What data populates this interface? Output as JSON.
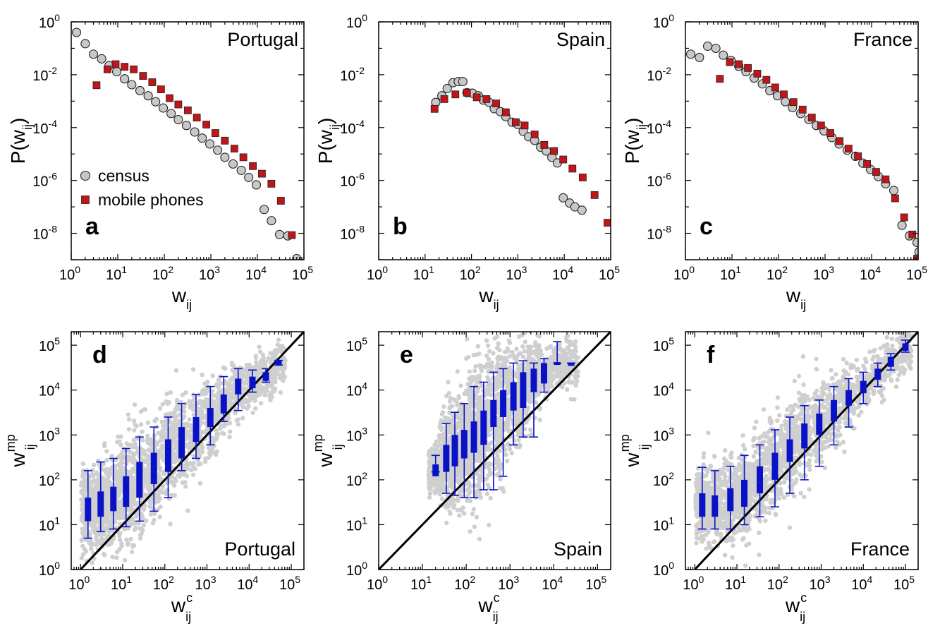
{
  "colors": {
    "census_fill": "#c8c8c8",
    "phones_fill": "#c0161b",
    "box_blue": "#0a12c8",
    "scatter_gray": "#cfcfcf"
  },
  "chart_data": [
    {
      "type": "scatter",
      "panel_letter": "a",
      "country": "Portugal",
      "xlabel": "w",
      "xlabel_sub": "ij",
      "ylabel": "P(w",
      "ylabel_sub": "ij",
      "ylabel_close": ")",
      "xscale": "log",
      "yscale": "log",
      "xlim": [
        1,
        100000
      ],
      "ylim": [
        1e-09,
        1
      ],
      "xticks": [
        {
          "b": "10",
          "e": "0"
        },
        {
          "b": "10",
          "e": "1"
        },
        {
          "b": "10",
          "e": "2"
        },
        {
          "b": "10",
          "e": "3"
        },
        {
          "b": "10",
          "e": "4"
        },
        {
          "b": "10",
          "e": "5"
        }
      ],
      "yticks": [
        {
          "b": "10",
          "e": "0"
        },
        {
          "b": "10",
          "e": "-2"
        },
        {
          "b": "10",
          "e": "-4"
        },
        {
          "b": "10",
          "e": "-6"
        },
        {
          "b": "10",
          "e": "-8"
        }
      ],
      "legend": [
        "census",
        "mobile phones"
      ],
      "series": [
        {
          "name": "census",
          "marker": "circle",
          "x": [
            1.3,
            2,
            3,
            4.5,
            6.5,
            9.5,
            14,
            20,
            30,
            45,
            65,
            95,
            140,
            200,
            300,
            450,
            650,
            950,
            1400,
            2000,
            3000,
            4500,
            6500,
            9500,
            14000,
            20000,
            30000,
            45000,
            70000
          ],
          "y": [
            0.4,
            0.15,
            0.06,
            0.04,
            0.022,
            0.013,
            0.007,
            0.0042,
            0.0025,
            0.0016,
            0.00095,
            0.00055,
            0.00034,
            0.0002,
            0.00012,
            6.8e-05,
            4e-05,
            2.4e-05,
            1.4e-05,
            7.5e-06,
            4.2e-06,
            2.4e-06,
            1.3e-06,
            6.8e-07,
            8e-08,
            3e-08,
            9e-09,
            8e-09,
            1.1e-09
          ]
        },
        {
          "name": "mobile phones",
          "marker": "square",
          "x": [
            3.5,
            6,
            9,
            14,
            22,
            35,
            55,
            85,
            130,
            200,
            320,
            500,
            800,
            1250,
            2000,
            3200,
            5000,
            8000,
            12500,
            20000,
            32000,
            55000
          ],
          "y": [
            0.004,
            0.016,
            0.025,
            0.02,
            0.016,
            0.009,
            0.0052,
            0.0028,
            0.0013,
            0.00075,
            0.00045,
            0.00024,
            0.00013,
            6.2e-05,
            3.2e-05,
            1.6e-05,
            7.5e-06,
            3.5e-06,
            1.8e-06,
            7.5e-07,
            1.7e-07,
            8.5e-09
          ]
        }
      ]
    },
    {
      "type": "scatter",
      "panel_letter": "b",
      "country": "Spain",
      "xlabel": "w",
      "xlabel_sub": "ij",
      "ylabel": "P(w",
      "ylabel_sub": "ij",
      "ylabel_close": ")",
      "xscale": "log",
      "yscale": "log",
      "xlim": [
        1,
        100000
      ],
      "ylim": [
        1e-09,
        1
      ],
      "xticks": [
        {
          "b": "10",
          "e": "0"
        },
        {
          "b": "10",
          "e": "1"
        },
        {
          "b": "10",
          "e": "2"
        },
        {
          "b": "10",
          "e": "3"
        },
        {
          "b": "10",
          "e": "4"
        },
        {
          "b": "10",
          "e": "5"
        }
      ],
      "yticks": [
        {
          "b": "10",
          "e": "0"
        },
        {
          "b": "10",
          "e": "-2"
        },
        {
          "b": "10",
          "e": "-4"
        },
        {
          "b": "10",
          "e": "-6"
        },
        {
          "b": "10",
          "e": "-8"
        }
      ],
      "series": [
        {
          "name": "census",
          "marker": "circle",
          "x": [
            17,
            23,
            30,
            40,
            52,
            65,
            80,
            105,
            140,
            180,
            240,
            310,
            420,
            550,
            750,
            1000,
            1300,
            1700,
            2300,
            3100,
            4100,
            5400,
            7100,
            9500,
            13000,
            17000,
            24000
          ],
          "y": [
            0.0009,
            0.0016,
            0.003,
            0.005,
            0.0055,
            0.0055,
            0.0021,
            0.002,
            0.0016,
            0.0011,
            0.0009,
            0.00052,
            0.0004,
            0.00026,
            0.00016,
            0.00013,
            7.2e-05,
            4.5e-05,
            3.3e-05,
            1.8e-05,
            1.3e-05,
            7.5e-06,
            4.6e-06,
            2.2e-07,
            1.4e-07,
            1e-07,
            7.5e-08
          ]
        },
        {
          "name": "mobile phones",
          "marker": "square",
          "x": [
            16,
            26,
            45,
            80,
            130,
            210,
            340,
            550,
            900,
            1400,
            2300,
            3700,
            6000,
            9500,
            15000,
            25000,
            45000,
            85000
          ],
          "y": [
            0.00051,
            0.0012,
            0.0018,
            0.0021,
            0.0014,
            0.0012,
            0.00082,
            0.00038,
            0.00016,
            0.00012,
            5.5e-05,
            2.2e-05,
            1.3e-05,
            6.2e-06,
            2.8e-06,
            1.3e-06,
            2.8e-07,
            2.5e-08
          ]
        }
      ]
    },
    {
      "type": "scatter",
      "panel_letter": "c",
      "country": "France",
      "xlabel": "w",
      "xlabel_sub": "ij",
      "ylabel": "P(w",
      "ylabel_sub": "ij",
      "ylabel_close": ")",
      "xscale": "log",
      "yscale": "log",
      "xlim": [
        1,
        100000
      ],
      "ylim": [
        1e-09,
        1
      ],
      "xticks": [
        {
          "b": "10",
          "e": "0"
        },
        {
          "b": "10",
          "e": "1"
        },
        {
          "b": "10",
          "e": "2"
        },
        {
          "b": "10",
          "e": "3"
        },
        {
          "b": "10",
          "e": "4"
        },
        {
          "b": "10",
          "e": "5"
        }
      ],
      "yticks": [
        {
          "b": "10",
          "e": "0"
        },
        {
          "b": "10",
          "e": "-2"
        },
        {
          "b": "10",
          "e": "-4"
        },
        {
          "b": "10",
          "e": "-6"
        },
        {
          "b": "10",
          "e": "-8"
        }
      ],
      "series": [
        {
          "name": "census",
          "marker": "circle",
          "x": [
            1.3,
            2,
            3,
            4.5,
            6.5,
            9.5,
            14,
            20,
            30,
            45,
            65,
            95,
            140,
            200,
            300,
            450,
            650,
            950,
            1400,
            2000,
            3000,
            4500,
            6500,
            9500,
            14000,
            20000,
            30000,
            45000,
            65000,
            95000,
            105000
          ],
          "y": [
            0.06,
            0.045,
            0.12,
            0.1,
            0.055,
            0.035,
            0.021,
            0.013,
            0.0075,
            0.0045,
            0.0025,
            0.0016,
            0.00095,
            0.00057,
            0.00034,
            0.0002,
            0.00012,
            7.5e-05,
            4.2e-05,
            2.4e-05,
            1.4e-05,
            8.2e-06,
            4.5e-06,
            2.6e-06,
            1.4e-06,
            7.5e-07,
            4.2e-07,
            2e-08,
            8e-09,
            4.5e-09,
            2e-09
          ]
        },
        {
          "name": "mobile phones",
          "marker": "square",
          "x": [
            5.5,
            9,
            14,
            22,
            35,
            55,
            85,
            130,
            210,
            330,
            520,
            820,
            1300,
            2050,
            3200,
            5100,
            8000,
            12500,
            20000,
            32000,
            50000,
            75000,
            95000
          ],
          "y": [
            0.007,
            0.03,
            0.025,
            0.018,
            0.011,
            0.0064,
            0.0033,
            0.0018,
            0.00092,
            0.00048,
            0.00024,
            0.00012,
            6.2e-05,
            3.1e-05,
            1.6e-05,
            8.2e-06,
            4.2e-06,
            2.1e-06,
            1.1e-06,
            2.1e-07,
            4e-08,
            9e-09,
            1.1e-09
          ]
        }
      ]
    },
    {
      "type": "box",
      "panel_letter": "d",
      "country": "Portugal",
      "xlabel": "w",
      "xlabel_sup": "c",
      "xlabel_sub": "ij",
      "ylabel": "w",
      "ylabel_sup": "mp",
      "ylabel_sub": "ij",
      "xscale": "log",
      "yscale": "log",
      "xlim": [
        0.6,
        200000
      ],
      "ylim": [
        1,
        200000
      ],
      "diagonal": "y = x",
      "xticks": [
        {
          "b": "10",
          "e": "0"
        },
        {
          "b": "10",
          "e": "1"
        },
        {
          "b": "10",
          "e": "2"
        },
        {
          "b": "10",
          "e": "3"
        },
        {
          "b": "10",
          "e": "4"
        },
        {
          "b": "10",
          "e": "5"
        }
      ],
      "yticks": [
        {
          "b": "10",
          "e": "0"
        },
        {
          "b": "10",
          "e": "1"
        },
        {
          "b": "10",
          "e": "2"
        },
        {
          "b": "10",
          "e": "3"
        },
        {
          "b": "10",
          "e": "4"
        },
        {
          "b": "10",
          "e": "5"
        }
      ],
      "boxes": [
        {
          "x": 1.5,
          "wlo": 5,
          "q1": 12,
          "q3": 40,
          "whi": 160
        },
        {
          "x": 3,
          "wlo": 7,
          "q1": 15,
          "q3": 55,
          "whi": 250
        },
        {
          "x": 6,
          "wlo": 8,
          "q1": 20,
          "q3": 70,
          "whi": 300
        },
        {
          "x": 12,
          "wlo": 9,
          "q1": 25,
          "q3": 120,
          "whi": 500
        },
        {
          "x": 25,
          "wlo": 12,
          "q1": 40,
          "q3": 250,
          "whi": 900
        },
        {
          "x": 55,
          "wlo": 20,
          "q1": 80,
          "q3": 400,
          "whi": 1500
        },
        {
          "x": 120,
          "wlo": 40,
          "q1": 150,
          "q3": 800,
          "whi": 2500
        },
        {
          "x": 250,
          "wlo": 160,
          "q1": 300,
          "q3": 1500,
          "whi": 5000
        },
        {
          "x": 550,
          "wlo": 300,
          "q1": 700,
          "q3": 2500,
          "whi": 8000
        },
        {
          "x": 1200,
          "wlo": 600,
          "q1": 1500,
          "q3": 4000,
          "whi": 12000
        },
        {
          "x": 2500,
          "wlo": 2000,
          "q1": 3000,
          "q3": 8000,
          "whi": 20000
        },
        {
          "x": 5500,
          "wlo": 3500,
          "q1": 8000,
          "q3": 18000,
          "whi": 30000
        },
        {
          "x": 12000,
          "wlo": 9000,
          "q1": 11000,
          "q3": 20000,
          "whi": 28000
        },
        {
          "x": 25000,
          "wlo": 15000,
          "q1": 16000,
          "q3": 25000,
          "whi": 30000
        },
        {
          "x": 50000,
          "wlo": 36000,
          "q1": 36000,
          "q3": 46000,
          "whi": 46000
        }
      ]
    },
    {
      "type": "box",
      "panel_letter": "e",
      "country": "Spain",
      "xlabel": "w",
      "xlabel_sup": "c",
      "xlabel_sub": "ij",
      "ylabel": "w",
      "ylabel_sup": "mp",
      "ylabel_sub": "ij",
      "xscale": "log",
      "yscale": "log",
      "xlim": [
        1,
        200000
      ],
      "ylim": [
        1,
        200000
      ],
      "diagonal": "y = x",
      "xticks": [
        {
          "b": "10",
          "e": "0"
        },
        {
          "b": "10",
          "e": "1"
        },
        {
          "b": "10",
          "e": "2"
        },
        {
          "b": "10",
          "e": "3"
        },
        {
          "b": "10",
          "e": "4"
        },
        {
          "b": "10",
          "e": "5"
        }
      ],
      "yticks": [
        {
          "b": "10",
          "e": "0"
        },
        {
          "b": "10",
          "e": "1"
        },
        {
          "b": "10",
          "e": "2"
        },
        {
          "b": "10",
          "e": "3"
        },
        {
          "b": "10",
          "e": "4"
        },
        {
          "b": "10",
          "e": "5"
        }
      ],
      "boxes": [
        {
          "x": 20,
          "wlo": 150,
          "q1": 120,
          "q3": 220,
          "whi": 350
        },
        {
          "x": 35,
          "wlo": 50,
          "q1": 150,
          "q3": 600,
          "whi": 1800
        },
        {
          "x": 55,
          "wlo": 45,
          "q1": 200,
          "q3": 1000,
          "whi": 3200
        },
        {
          "x": 90,
          "wlo": 40,
          "q1": 300,
          "q3": 1300,
          "whi": 5000
        },
        {
          "x": 150,
          "wlo": 40,
          "q1": 400,
          "q3": 2000,
          "whi": 12000
        },
        {
          "x": 250,
          "wlo": 60,
          "q1": 600,
          "q3": 3500,
          "whi": 15000
        },
        {
          "x": 420,
          "wlo": 60,
          "q1": 1500,
          "q3": 6000,
          "whi": 25000
        },
        {
          "x": 700,
          "wlo": 120,
          "q1": 2500,
          "q3": 10000,
          "whi": 30000
        },
        {
          "x": 1200,
          "wlo": 600,
          "q1": 3500,
          "q3": 15000,
          "whi": 40000
        },
        {
          "x": 2000,
          "wlo": 900,
          "q1": 4000,
          "q3": 25000,
          "whi": 45000
        },
        {
          "x": 3500,
          "wlo": 900,
          "q1": 9000,
          "q3": 30000,
          "whi": 40000
        },
        {
          "x": 6000,
          "wlo": 9000,
          "q1": 14000,
          "q3": 40000,
          "whi": 50000
        },
        {
          "x": 12000,
          "wlo": 40000,
          "q1": 40000,
          "q3": 42000,
          "whi": 120000
        },
        {
          "x": 25000,
          "wlo": 40000,
          "q1": 40000,
          "q3": 40000,
          "whi": 40000
        }
      ]
    },
    {
      "type": "box",
      "panel_letter": "f",
      "country": "France",
      "xlabel": "w",
      "xlabel_sup": "c",
      "xlabel_sub": "ij",
      "ylabel": "w",
      "ylabel_sup": "mp",
      "ylabel_sub": "ij",
      "xscale": "log",
      "yscale": "log",
      "xlim": [
        0.6,
        200000
      ],
      "ylim": [
        1,
        200000
      ],
      "diagonal": "y = x",
      "xticks": [
        {
          "b": "10",
          "e": "0"
        },
        {
          "b": "10",
          "e": "1"
        },
        {
          "b": "10",
          "e": "2"
        },
        {
          "b": "10",
          "e": "3"
        },
        {
          "b": "10",
          "e": "4"
        },
        {
          "b": "10",
          "e": "5"
        }
      ],
      "yticks": [
        {
          "b": "10",
          "e": "0"
        },
        {
          "b": "10",
          "e": "1"
        },
        {
          "b": "10",
          "e": "2"
        },
        {
          "b": "10",
          "e": "3"
        },
        {
          "b": "10",
          "e": "4"
        },
        {
          "b": "10",
          "e": "5"
        }
      ],
      "boxes": [
        {
          "x": 1.5,
          "wlo": 8,
          "q1": 15,
          "q3": 50,
          "whi": 190
        },
        {
          "x": 3,
          "wlo": 8,
          "q1": 15,
          "q3": 45,
          "whi": 160
        },
        {
          "x": 7,
          "wlo": 8,
          "q1": 20,
          "q3": 65,
          "whi": 200
        },
        {
          "x": 15,
          "wlo": 10,
          "q1": 25,
          "q3": 100,
          "whi": 350
        },
        {
          "x": 35,
          "wlo": 15,
          "q1": 50,
          "q3": 200,
          "whi": 600
        },
        {
          "x": 80,
          "wlo": 25,
          "q1": 100,
          "q3": 400,
          "whi": 1300
        },
        {
          "x": 180,
          "wlo": 50,
          "q1": 250,
          "q3": 800,
          "whi": 2500
        },
        {
          "x": 400,
          "wlo": 100,
          "q1": 500,
          "q3": 1800,
          "whi": 4500
        },
        {
          "x": 900,
          "wlo": 200,
          "q1": 1000,
          "q3": 3000,
          "whi": 6000
        },
        {
          "x": 2000,
          "wlo": 600,
          "q1": 2000,
          "q3": 6000,
          "whi": 12000
        },
        {
          "x": 4500,
          "wlo": 1500,
          "q1": 4500,
          "q3": 10000,
          "whi": 18000
        },
        {
          "x": 10000,
          "wlo": 5000,
          "q1": 8500,
          "q3": 16000,
          "whi": 25000
        },
        {
          "x": 22000,
          "wlo": 12000,
          "q1": 17000,
          "q3": 30000,
          "whi": 40000
        },
        {
          "x": 45000,
          "wlo": 28000,
          "q1": 33000,
          "q3": 55000,
          "whi": 65000
        },
        {
          "x": 100000,
          "wlo": 70000,
          "q1": 75000,
          "q3": 110000,
          "whi": 130000
        }
      ]
    }
  ]
}
